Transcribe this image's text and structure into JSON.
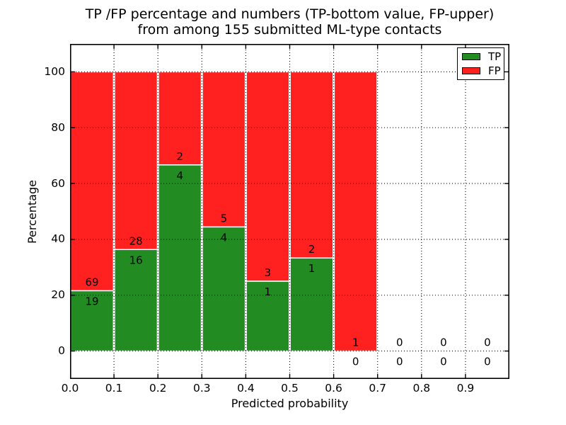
{
  "title": {
    "line1": "TP /FP percentage and numbers (TP-bottom value, FP-upper)",
    "line2": "from among 155 submitted ML-type contacts"
  },
  "axes": {
    "xlabel": "Predicted probability",
    "ylabel": "Percentage"
  },
  "legend": {
    "position": "upper-right",
    "entries": [
      {
        "label": "TP",
        "color": "#228B22"
      },
      {
        "label": "FP",
        "color": "#FF2020"
      }
    ]
  },
  "chart_data": {
    "type": "bar",
    "stacked": true,
    "normalized_to_percent": true,
    "title": "TP /FP percentage and numbers (TP-bottom value, FP-upper) from among 155 submitted ML-type contacts",
    "xlabel": "Predicted probability",
    "ylabel": "Percentage",
    "total_contacts": 155,
    "bin_width": 0.1,
    "bin_starts": [
      0.0,
      0.1,
      0.2,
      0.3,
      0.4,
      0.5,
      0.6,
      0.7,
      0.8,
      0.9
    ],
    "categories": [
      "0.0-0.1",
      "0.1-0.2",
      "0.2-0.3",
      "0.3-0.4",
      "0.4-0.5",
      "0.5-0.6",
      "0.6-0.7",
      "0.7-0.8",
      "0.8-0.9",
      "0.9-1.0"
    ],
    "series": [
      {
        "name": "TP",
        "color": "#228B22",
        "counts": [
          19,
          16,
          4,
          4,
          1,
          1,
          0,
          0,
          0,
          0
        ],
        "pct": [
          21.6,
          36.4,
          66.7,
          44.4,
          25.0,
          33.3,
          0.0,
          0.0,
          0.0,
          0.0
        ]
      },
      {
        "name": "FP",
        "color": "#FF2020",
        "counts": [
          69,
          28,
          2,
          5,
          3,
          2,
          1,
          0,
          0,
          0
        ],
        "pct": [
          78.4,
          63.6,
          33.3,
          55.6,
          75.0,
          66.7,
          100.0,
          0.0,
          0.0,
          0.0
        ]
      }
    ],
    "xticks": [
      {
        "v": 0.0,
        "label": "0.0"
      },
      {
        "v": 0.1,
        "label": "0.1"
      },
      {
        "v": 0.2,
        "label": "0.2"
      },
      {
        "v": 0.3,
        "label": "0.3"
      },
      {
        "v": 0.4,
        "label": "0.4"
      },
      {
        "v": 0.5,
        "label": "0.5"
      },
      {
        "v": 0.6,
        "label": "0.6"
      },
      {
        "v": 0.7,
        "label": "0.7"
      },
      {
        "v": 0.8,
        "label": "0.8"
      },
      {
        "v": 0.9,
        "label": "0.9"
      }
    ],
    "yticks": [
      {
        "v": 0,
        "label": "0"
      },
      {
        "v": 20,
        "label": "20"
      },
      {
        "v": 40,
        "label": "40"
      },
      {
        "v": 60,
        "label": "60"
      },
      {
        "v": 80,
        "label": "80"
      },
      {
        "v": 100,
        "label": "100"
      }
    ],
    "xlim": [
      0,
      1
    ],
    "ylim": [
      -10,
      110
    ],
    "grid": {
      "style": "dotted",
      "color": "#000000",
      "drawn_above_bars": true
    },
    "bar_edge_color": "#ffffff",
    "legend_position": "upper right"
  }
}
